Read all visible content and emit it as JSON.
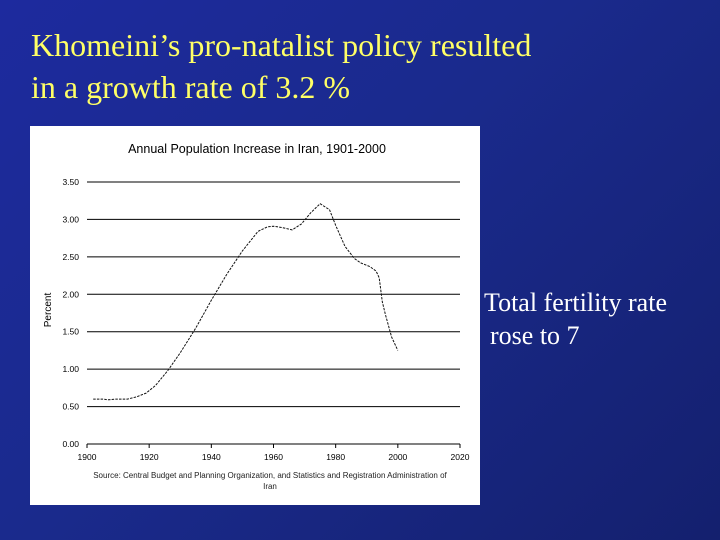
{
  "slide": {
    "title_line1": "Khomeini’s pro-natalist policy resulted",
    "title_line2": "in a growth rate of 3.2 %",
    "side_line1": "Total fertility rate",
    "side_line2": "rose to 7",
    "title_color": "#ffff66",
    "text_color": "#ffffff",
    "background_color": "#1d2a9e"
  },
  "chart_data": {
    "type": "line",
    "title": "Annual Population Increase in Iran, 1901-2000",
    "xlabel": "",
    "ylabel": "Percent",
    "xlim": [
      1900,
      2020
    ],
    "ylim": [
      0,
      3.5
    ],
    "x_ticks": [
      1900,
      1920,
      1940,
      1960,
      1980,
      2000,
      2020
    ],
    "x_tick_labels": [
      "1900",
      "1920",
      "1940",
      "1960",
      "1980",
      "2000",
      "2020"
    ],
    "y_ticks": [
      0,
      0.5,
      1.0,
      1.5,
      2.0,
      2.5,
      3.0,
      3.5
    ],
    "y_tick_labels": [
      "0.00",
      "0.50",
      "1.00",
      "1.50",
      "2.00",
      "2.50",
      "3.00",
      "3.50"
    ],
    "grid": true,
    "source_line1": "Source: Central Budget and Planning Organization, and Statistics and Registration Administration of",
    "source_line2": "Iran",
    "series": [
      {
        "name": "Annual population increase",
        "x": [
          1902,
          1905,
          1907,
          1909,
          1913,
          1916,
          1919,
          1922,
          1926,
          1930,
          1935,
          1940,
          1945,
          1950,
          1955,
          1958,
          1960,
          1963,
          1966,
          1969,
          1972,
          1975,
          1978,
          1980,
          1983,
          1986,
          1988,
          1991,
          1993,
          1994,
          1995,
          1996,
          1998,
          2000
        ],
        "y": [
          0.6,
          0.6,
          0.59,
          0.6,
          0.6,
          0.63,
          0.68,
          0.78,
          0.98,
          1.22,
          1.55,
          1.92,
          2.27,
          2.58,
          2.84,
          2.9,
          2.91,
          2.89,
          2.86,
          2.94,
          3.09,
          3.21,
          3.13,
          2.92,
          2.64,
          2.48,
          2.42,
          2.37,
          2.31,
          2.22,
          1.9,
          1.73,
          1.43,
          1.25
        ]
      }
    ]
  }
}
